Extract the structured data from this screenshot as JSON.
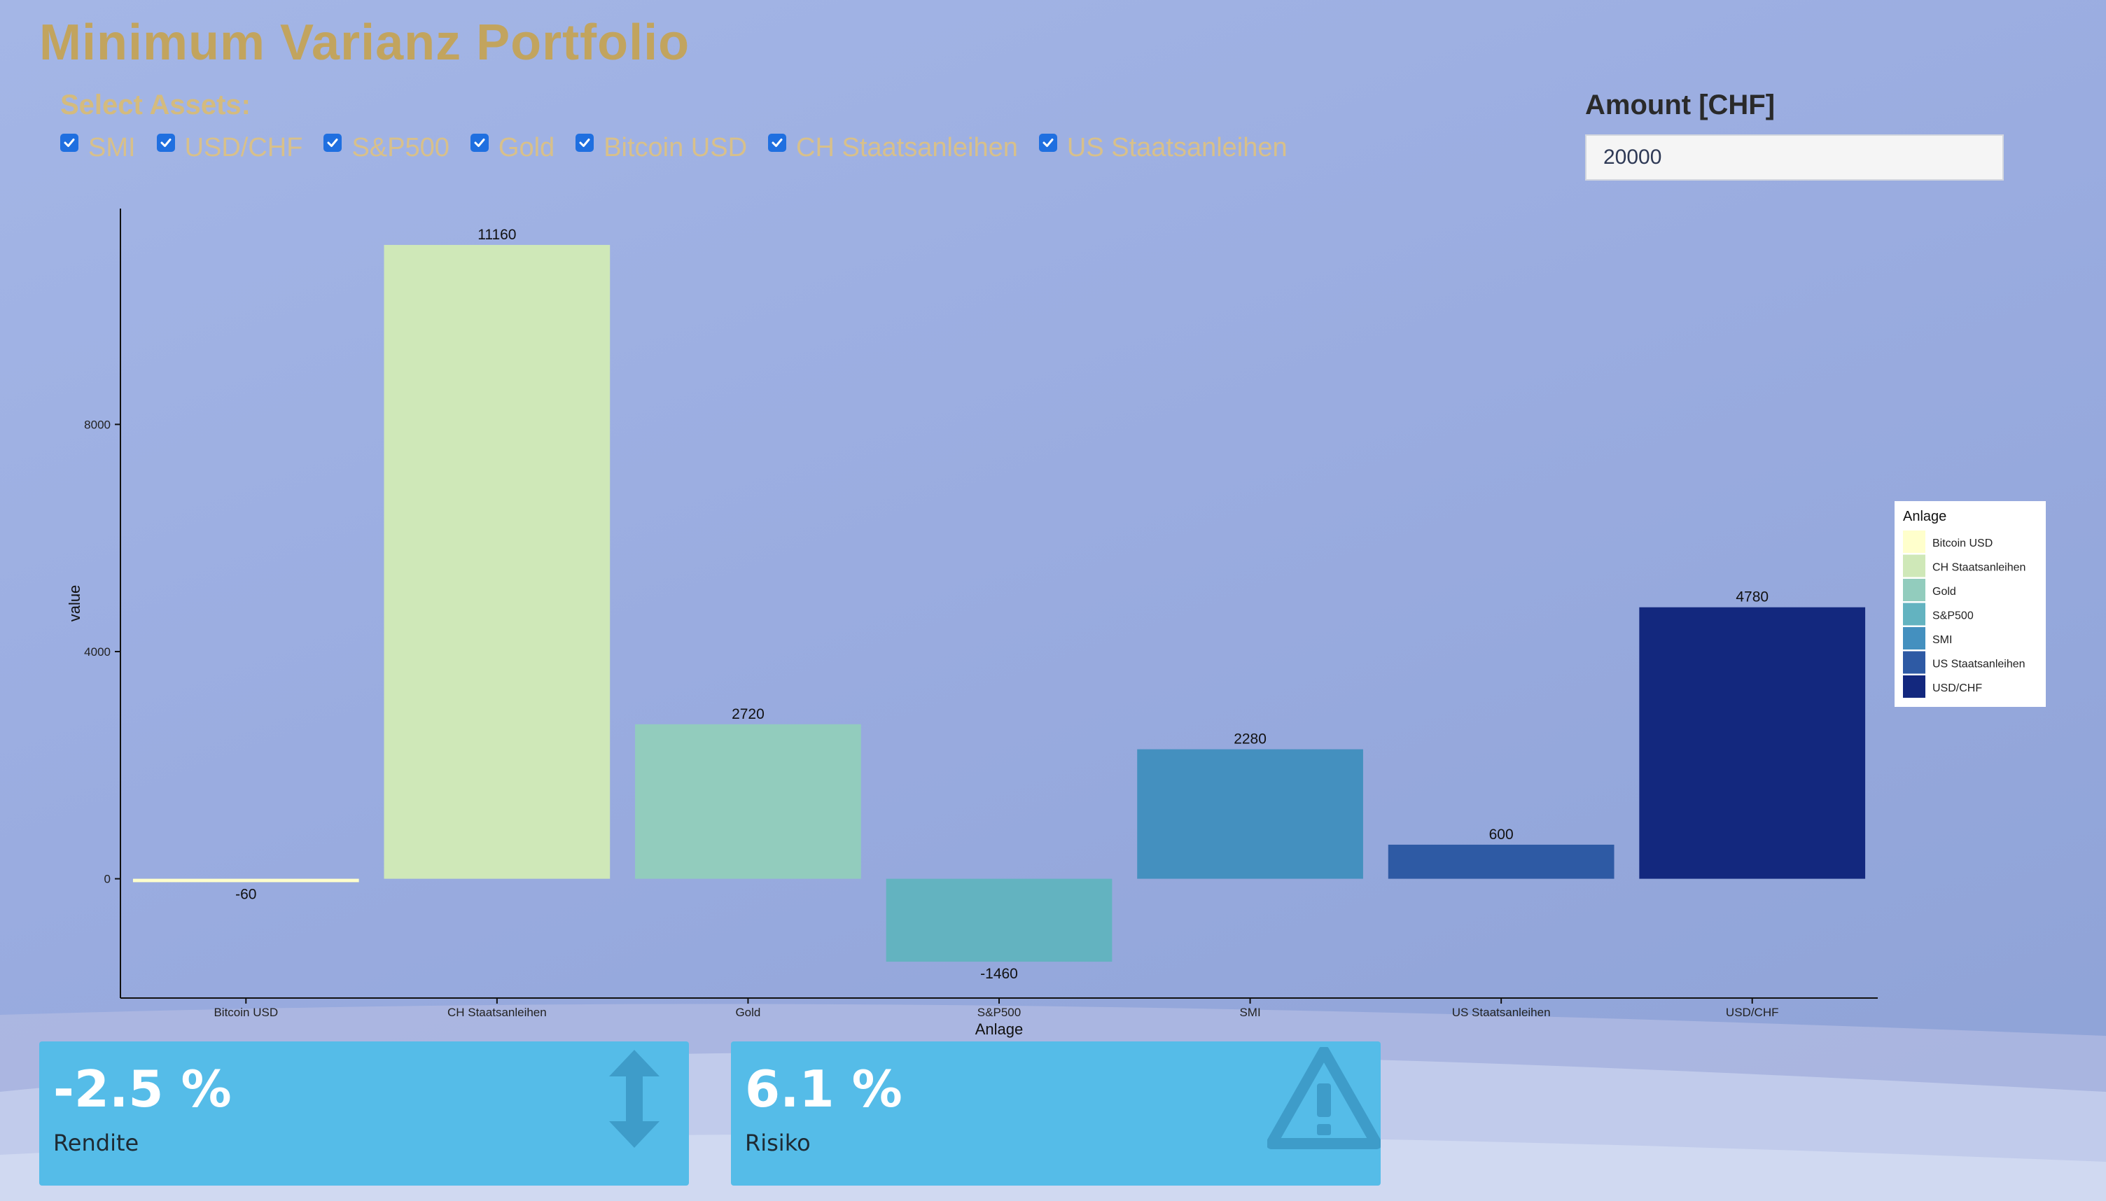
{
  "app": {
    "title": "Minimum Varianz Portfolio"
  },
  "assets": {
    "label": "Select Assets:",
    "items": [
      {
        "label": "SMI",
        "checked": true
      },
      {
        "label": "USD/CHF",
        "checked": true
      },
      {
        "label": "S&P500",
        "checked": true
      },
      {
        "label": "Gold",
        "checked": true
      },
      {
        "label": "Bitcoin USD",
        "checked": true
      },
      {
        "label": "CH Staatsanleihen",
        "checked": true
      },
      {
        "label": "US Staatsanleihen",
        "checked": true
      }
    ]
  },
  "amount": {
    "label": "Amount [CHF]",
    "value": "20000"
  },
  "chart_data": {
    "type": "bar",
    "categories": [
      "Bitcoin USD",
      "CH Staatsanleihen",
      "Gold",
      "S&P500",
      "SMI",
      "US Staatsanleihen",
      "USD/CHF"
    ],
    "values": [
      -60,
      11160,
      2720,
      -1460,
      2280,
      600,
      4780
    ],
    "colors": [
      "#ffffcc",
      "#cfe8b8",
      "#92ccbd",
      "#63b3c0",
      "#4490bf",
      "#2e5aa4",
      "#13287e"
    ],
    "xlabel": "Anlage",
    "ylabel": "value",
    "yticks": [
      0,
      4000,
      8000
    ],
    "ylim": [
      -2100,
      11800
    ],
    "grid": false,
    "legend": {
      "title": "Anlage",
      "position": "right"
    }
  },
  "kpis": {
    "rendite": {
      "value": "-2.5 %",
      "label": "Rendite",
      "icon": "vertical-arrows-icon"
    },
    "risiko": {
      "value": "6.1 %",
      "label": "Risiko",
      "icon": "warning-triangle-icon"
    }
  },
  "colors": {
    "title": "#c2a45e",
    "kpi_box": "#55bce8",
    "checkbox": "#1f6fe0"
  }
}
